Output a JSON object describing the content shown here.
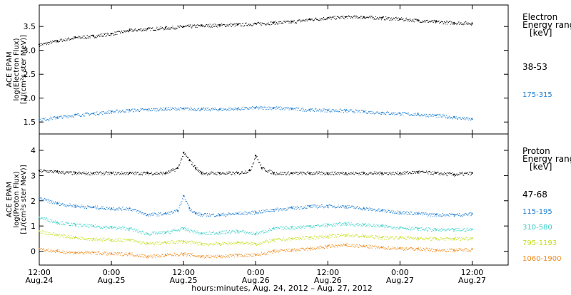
{
  "xaxis": {
    "label": "hours:minutes, Aug. 24, 2012 – Aug. 27, 2012",
    "range": [
      0,
      78
    ],
    "ticks": [
      {
        "t": 0,
        "time": "12:00",
        "day": "Aug.24"
      },
      {
        "t": 12,
        "time": "0:00",
        "day": "Aug.25"
      },
      {
        "t": 24,
        "time": "12:00",
        "day": "Aug.25"
      },
      {
        "t": 36,
        "time": "0:00",
        "day": "Aug.26"
      },
      {
        "t": 48,
        "time": "12:00",
        "day": "Aug.26"
      },
      {
        "t": 60,
        "time": "0:00",
        "day": "Aug.27"
      },
      {
        "t": 72,
        "time": "12:00",
        "day": "Aug.27"
      }
    ]
  },
  "panels": {
    "electron": {
      "ylabel_lines": [
        "ACE EPAM",
        "log(Electron Flux)",
        "[1/(cm²s ster MeV)]"
      ],
      "legend_title_lines": [
        "Electron",
        "Energy ranges",
        "[keV]"
      ]
    },
    "proton": {
      "ylabel_lines": [
        "ACE EPAM",
        "log(Proton Flux)",
        "[1/(cm²s ster MeV)]"
      ],
      "legend_title_lines": [
        "Proton",
        "Energy ranges",
        "[keV]"
      ]
    }
  },
  "chart_data": [
    {
      "type": "scatter",
      "panel": "electron",
      "ylim": [
        1.25,
        3.95
      ],
      "yticks": [
        1.5,
        2.0,
        2.5,
        3.0,
        3.5
      ],
      "ytick_labels": [
        "1.5",
        "2.0",
        "2.5",
        "3.0",
        "3.5"
      ],
      "series": [
        {
          "name": "38-53",
          "color": "#000000",
          "x": [
            0,
            3,
            6,
            9,
            12,
            15,
            18,
            21,
            24,
            27,
            30,
            33,
            36,
            39,
            42,
            45,
            48,
            51,
            54,
            57,
            60,
            63,
            66,
            69,
            72
          ],
          "y": [
            3.12,
            3.2,
            3.27,
            3.3,
            3.35,
            3.42,
            3.45,
            3.47,
            3.5,
            3.52,
            3.53,
            3.54,
            3.56,
            3.58,
            3.6,
            3.65,
            3.68,
            3.7,
            3.7,
            3.68,
            3.66,
            3.63,
            3.6,
            3.58,
            3.57
          ]
        },
        {
          "name": "175-315",
          "color": "#1f7fd4",
          "x": [
            0,
            3,
            6,
            9,
            12,
            15,
            18,
            21,
            24,
            27,
            30,
            33,
            36,
            39,
            42,
            45,
            48,
            51,
            54,
            57,
            60,
            63,
            66,
            69,
            72
          ],
          "y": [
            1.55,
            1.6,
            1.65,
            1.68,
            1.72,
            1.75,
            1.76,
            1.78,
            1.78,
            1.77,
            1.77,
            1.78,
            1.8,
            1.8,
            1.78,
            1.76,
            1.75,
            1.74,
            1.72,
            1.7,
            1.68,
            1.66,
            1.64,
            1.6,
            1.56
          ]
        }
      ]
    },
    {
      "type": "scatter",
      "panel": "proton",
      "ylim": [
        -0.55,
        4.65
      ],
      "yticks": [
        0,
        1,
        2,
        3,
        4
      ],
      "ytick_labels": [
        "0",
        "1",
        "2",
        "3",
        "4"
      ],
      "series": [
        {
          "name": "47-68",
          "color": "#000000",
          "x": [
            0,
            3,
            6,
            9,
            12,
            15,
            18,
            21,
            23,
            24,
            25,
            26,
            27,
            30,
            33,
            35,
            36,
            37,
            39,
            42,
            45,
            48,
            51,
            54,
            57,
            60,
            63,
            66,
            69,
            72
          ],
          "y": [
            3.2,
            3.15,
            3.1,
            3.1,
            3.1,
            3.1,
            3.1,
            3.1,
            3.3,
            3.9,
            3.6,
            3.3,
            3.1,
            3.1,
            3.1,
            3.2,
            3.8,
            3.3,
            3.1,
            3.1,
            3.1,
            3.1,
            3.1,
            3.1,
            3.1,
            3.1,
            3.15,
            3.1,
            3.05,
            3.1
          ]
        },
        {
          "name": "115-195",
          "color": "#1f7fd4",
          "x": [
            0,
            3,
            6,
            9,
            12,
            15,
            18,
            21,
            23,
            24,
            25,
            26,
            27,
            30,
            33,
            36,
            39,
            42,
            45,
            48,
            51,
            54,
            57,
            60,
            63,
            66,
            69,
            72
          ],
          "y": [
            2.1,
            1.9,
            1.8,
            1.75,
            1.7,
            1.7,
            1.45,
            1.5,
            1.6,
            2.2,
            1.7,
            1.5,
            1.45,
            1.45,
            1.5,
            1.55,
            1.65,
            1.72,
            1.78,
            1.8,
            1.78,
            1.7,
            1.62,
            1.55,
            1.5,
            1.45,
            1.45,
            1.48
          ]
        },
        {
          "name": "310-580",
          "color": "#3bd1c8",
          "x": [
            0,
            3,
            6,
            9,
            12,
            15,
            18,
            21,
            24,
            27,
            30,
            33,
            36,
            39,
            42,
            45,
            48,
            51,
            54,
            57,
            60,
            63,
            66,
            69,
            72
          ],
          "y": [
            1.35,
            1.15,
            1.05,
            1.0,
            0.95,
            0.9,
            0.7,
            0.75,
            0.9,
            0.7,
            0.75,
            0.8,
            0.7,
            0.9,
            0.95,
            1.0,
            1.05,
            1.1,
            1.05,
            1.0,
            0.95,
            0.9,
            0.85,
            0.85,
            0.87
          ]
        },
        {
          "name": "795-1193",
          "color": "#c6df1f",
          "x": [
            0,
            3,
            6,
            9,
            12,
            15,
            18,
            21,
            24,
            27,
            30,
            33,
            36,
            39,
            42,
            45,
            48,
            51,
            54,
            57,
            60,
            63,
            66,
            69,
            72
          ],
          "y": [
            0.8,
            0.65,
            0.55,
            0.5,
            0.45,
            0.45,
            0.3,
            0.35,
            0.4,
            0.3,
            0.3,
            0.35,
            0.3,
            0.45,
            0.5,
            0.55,
            0.6,
            0.65,
            0.6,
            0.55,
            0.55,
            0.52,
            0.5,
            0.5,
            0.52
          ]
        },
        {
          "name": "1060-1900",
          "color": "#f08a1a",
          "x": [
            0,
            3,
            6,
            9,
            12,
            15,
            18,
            21,
            24,
            27,
            30,
            33,
            36,
            39,
            42,
            45,
            48,
            51,
            54,
            57,
            60,
            63,
            66,
            69,
            72
          ],
          "y": [
            0.1,
            0.0,
            -0.05,
            -0.05,
            -0.1,
            -0.1,
            -0.2,
            -0.15,
            -0.1,
            -0.2,
            -0.2,
            -0.15,
            -0.15,
            0.0,
            0.05,
            0.1,
            0.2,
            0.25,
            0.2,
            0.15,
            0.12,
            0.1,
            0.05,
            0.05,
            0.08
          ]
        }
      ]
    }
  ]
}
